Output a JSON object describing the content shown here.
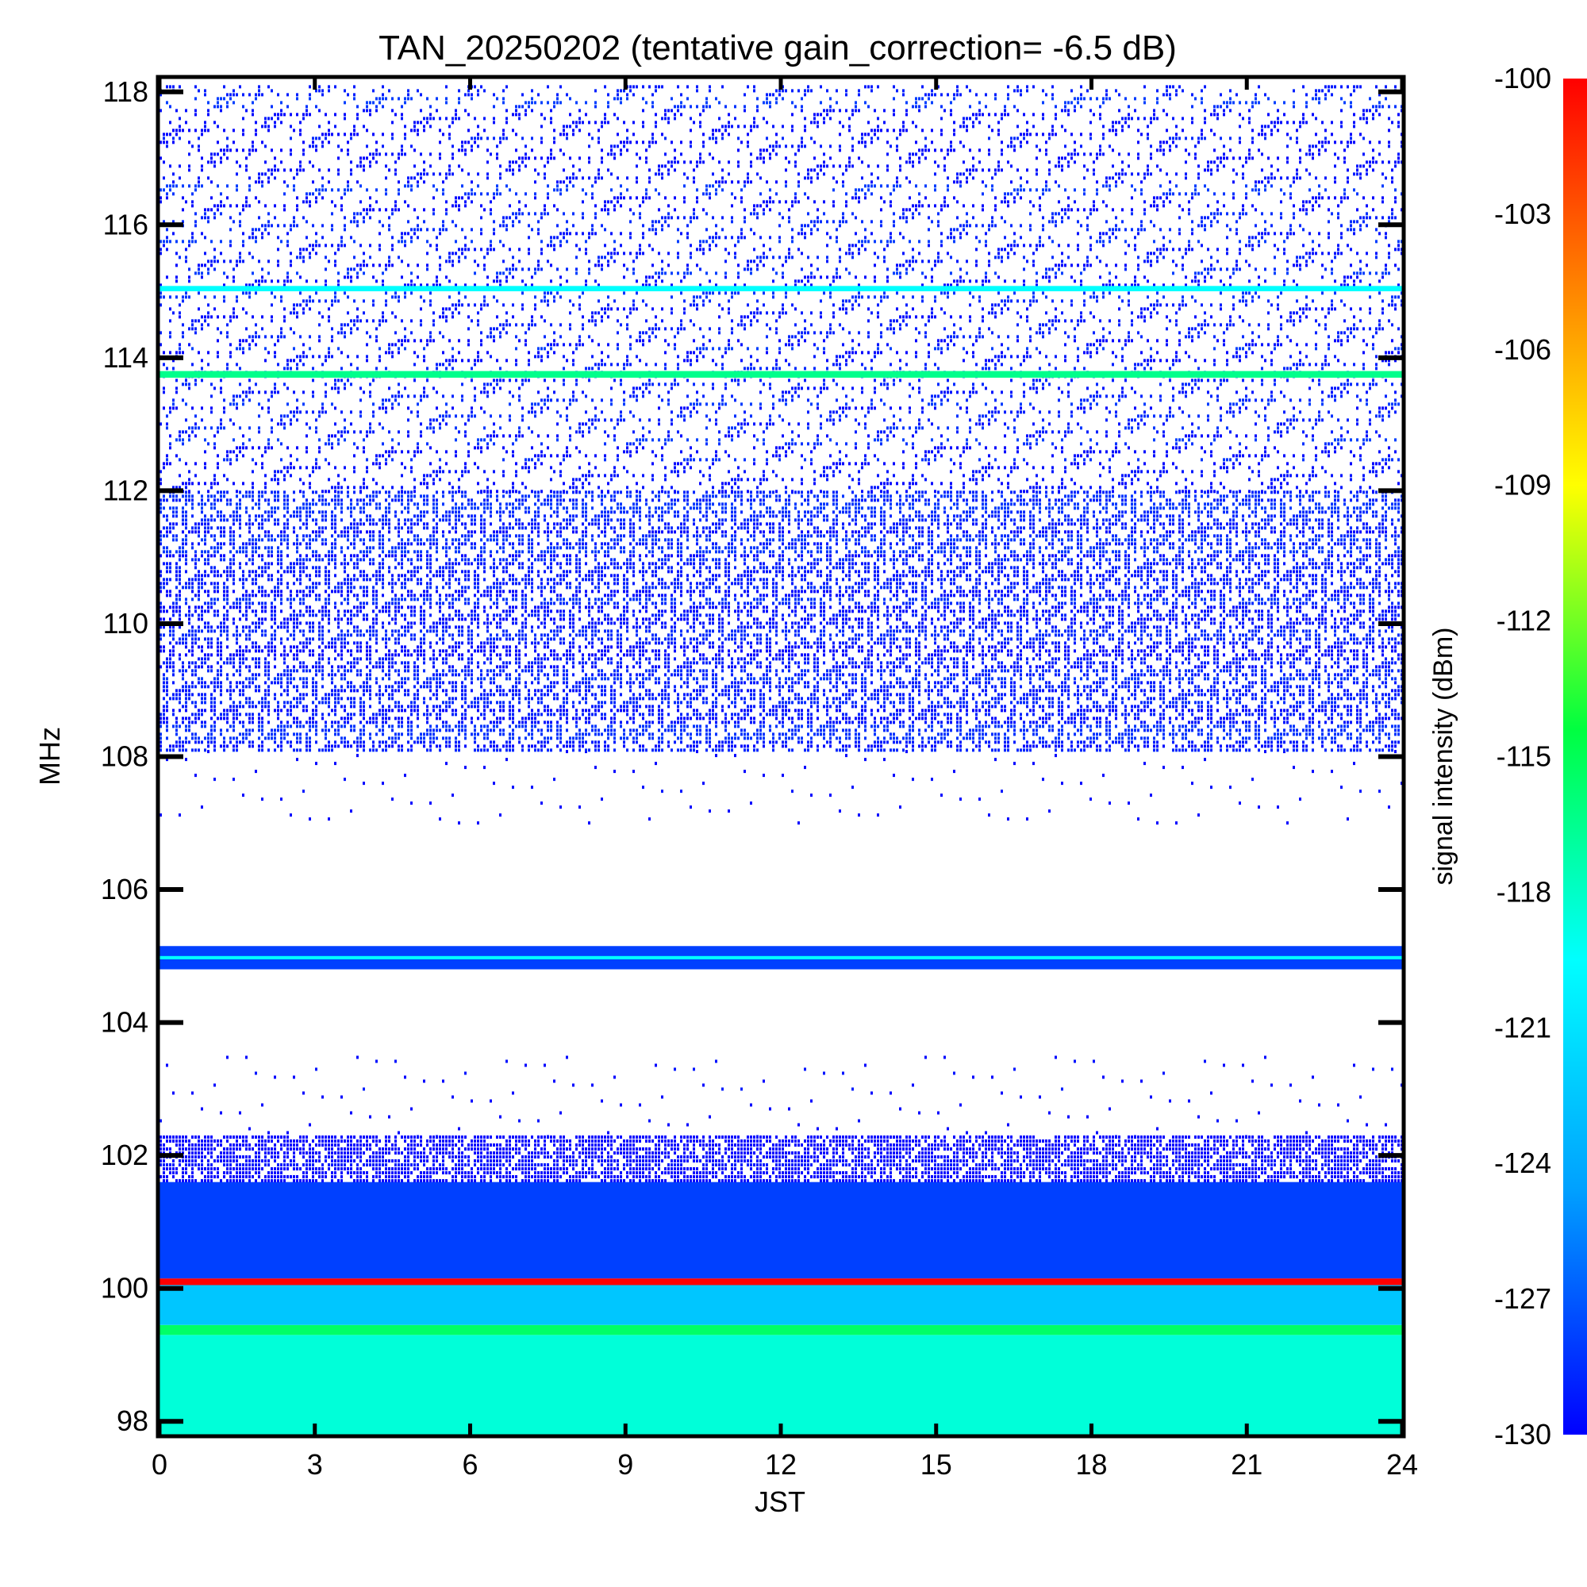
{
  "chart_data": {
    "type": "heatmap",
    "title": "TAN_20250202 (tentative gain_correction= -6.5 dB)",
    "xlabel": "JST",
    "ylabel": "MHz",
    "colorbar_label": "signal intensity (dBm)",
    "xlim": [
      0,
      24
    ],
    "ylim": [
      97.8,
      118.2
    ],
    "x_ticks": [
      0,
      3,
      6,
      9,
      12,
      15,
      18,
      21,
      24
    ],
    "y_ticks": [
      98,
      100,
      102,
      104,
      106,
      108,
      110,
      112,
      114,
      116,
      118
    ],
    "colorbar_ticks": [
      -100,
      -103,
      -106,
      -109,
      -112,
      -115,
      -118,
      -121,
      -124,
      -127,
      -130
    ],
    "color_range": [
      -130,
      -100
    ],
    "colormap": [
      "#0000ff",
      "#00a0ff",
      "#00ffff",
      "#00ff40",
      "#ffff00",
      "#ff8000",
      "#ff0000"
    ],
    "bands": [
      {
        "freq_range": [
          97.8,
          99.3
        ],
        "level_dbm": -119,
        "pattern": "solid"
      },
      {
        "freq_range": [
          99.3,
          99.45
        ],
        "level_dbm": -116,
        "pattern": "solid"
      },
      {
        "freq_range": [
          99.45,
          100.05
        ],
        "level_dbm": -123,
        "pattern": "solid"
      },
      {
        "freq_range": [
          100.05,
          100.15
        ],
        "level_dbm": -100,
        "pattern": "line"
      },
      {
        "freq_range": [
          100.15,
          101.6
        ],
        "level_dbm": -128,
        "pattern": "solid"
      },
      {
        "freq_range": [
          101.6,
          102.3
        ],
        "level_dbm": -129,
        "pattern": "dense"
      },
      {
        "freq_range": [
          102.3,
          103.5
        ],
        "level_dbm": -129,
        "pattern": "very_sparse"
      },
      {
        "freq_range": [
          104.8,
          105.15
        ],
        "level_dbm": -128,
        "pattern": "line"
      },
      {
        "freq_range": [
          104.95,
          105.0
        ],
        "level_dbm": -120,
        "pattern": "line"
      },
      {
        "freq_range": [
          107.0,
          108.1
        ],
        "level_dbm": -129,
        "pattern": "very_sparse"
      },
      {
        "freq_range": [
          108.1,
          112.0
        ],
        "level_dbm": -128,
        "pattern": "medium"
      },
      {
        "freq_range": [
          112.0,
          118.1
        ],
        "level_dbm": -128,
        "pattern": "sparse"
      },
      {
        "freq_range": [
          113.7,
          113.8
        ],
        "level_dbm": -117,
        "pattern": "line"
      },
      {
        "freq_range": [
          115.0,
          115.08
        ],
        "level_dbm": -120,
        "pattern": "line"
      }
    ]
  }
}
